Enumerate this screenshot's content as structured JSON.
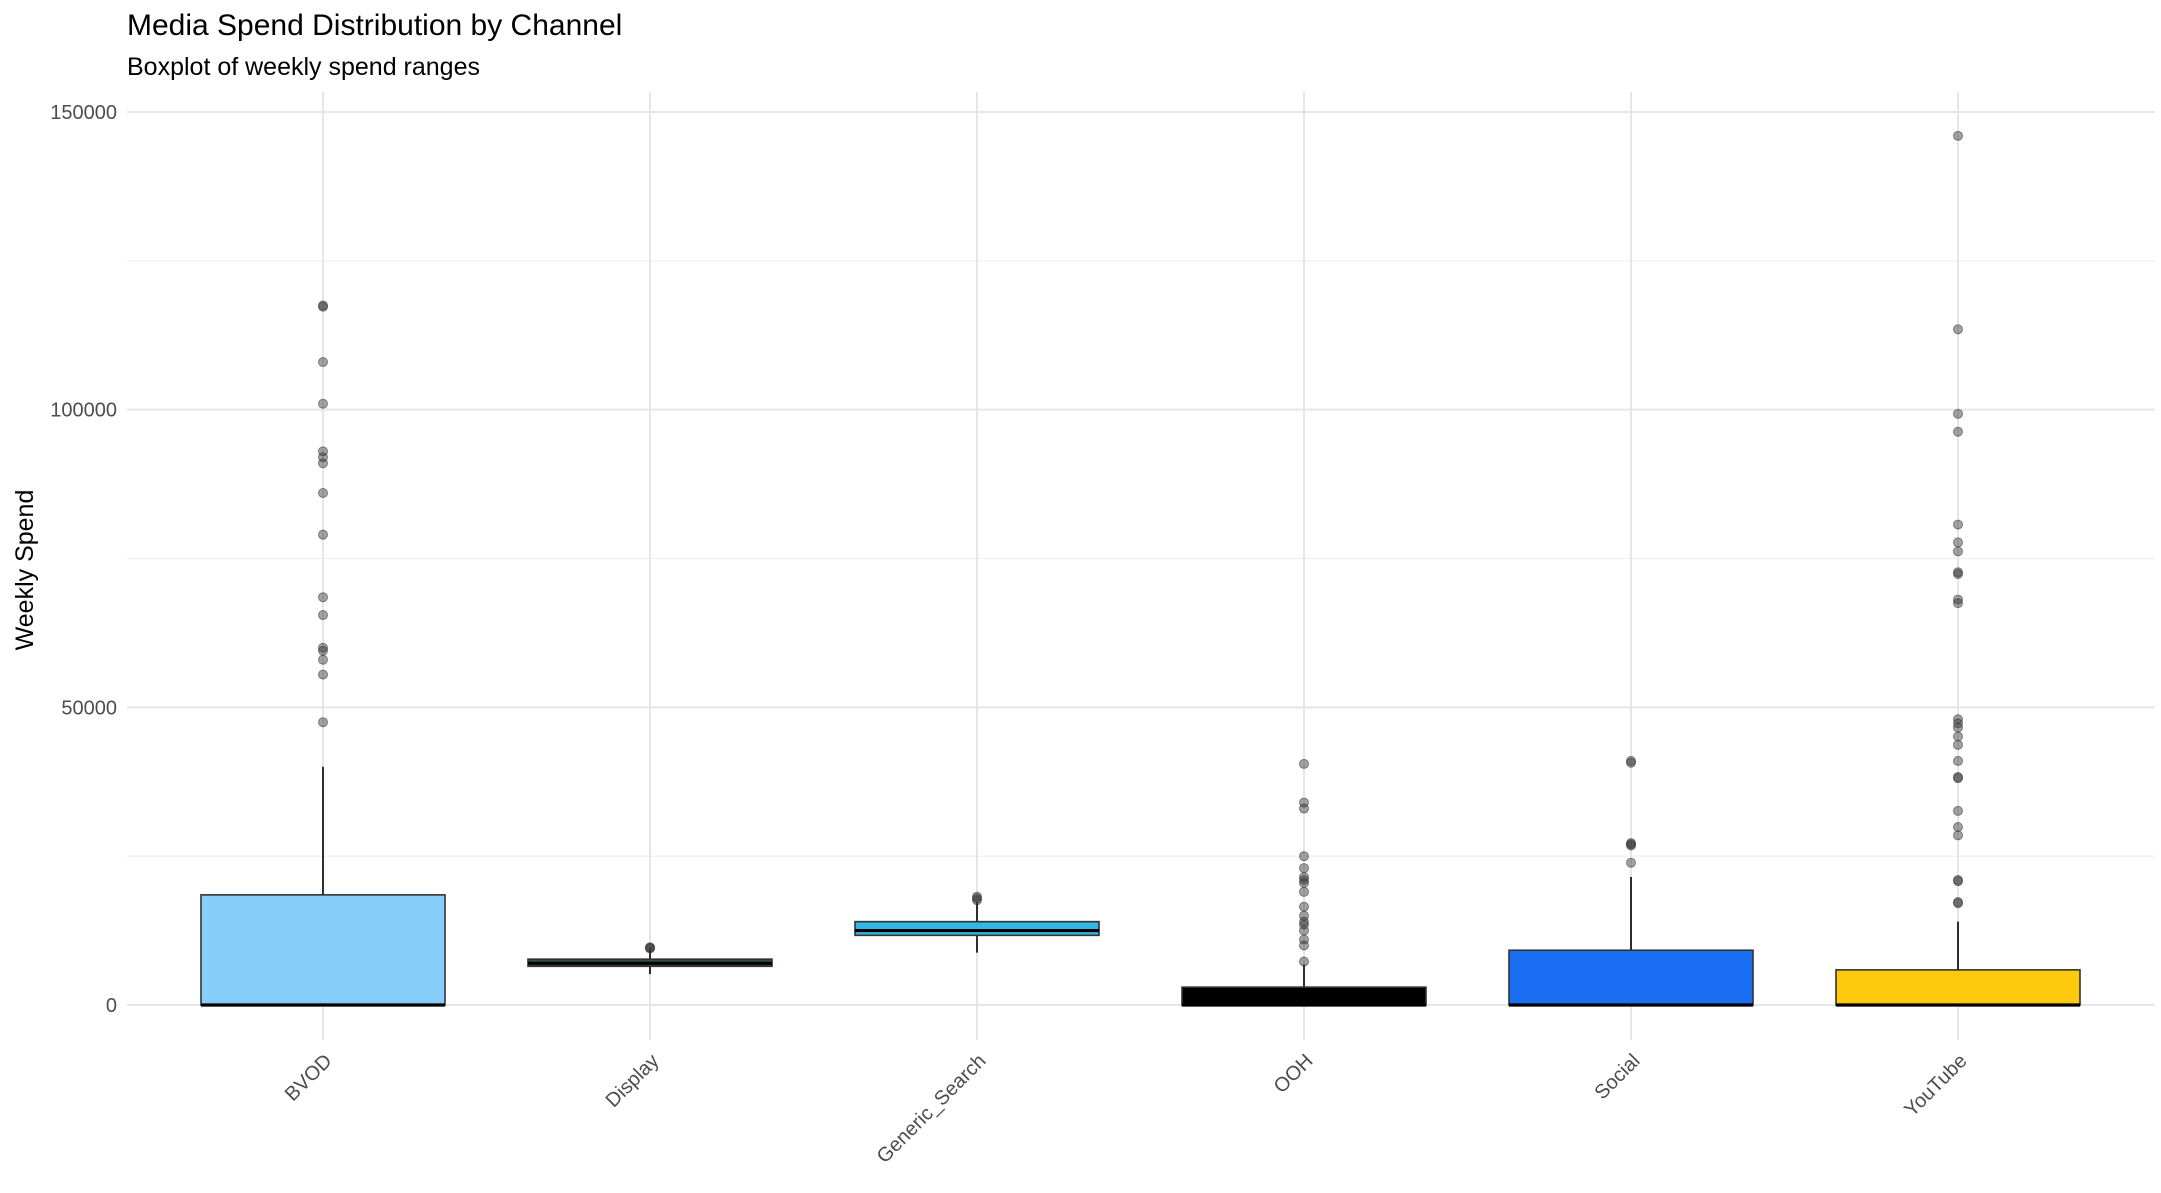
{
  "chart_data": {
    "type": "boxplot",
    "title": "Media Spend Distribution by Channel",
    "subtitle": "Boxplot of weekly spend ranges",
    "xlabel": "",
    "ylabel": "Weekly Spend",
    "ylim": [
      -6000,
      152000
    ],
    "y_ticks": [
      0,
      50000,
      100000,
      150000
    ],
    "y_tick_labels": [
      "0",
      "50000",
      "100000",
      "150000"
    ],
    "grid": true,
    "legend": "none",
    "categories": [
      "BVOD",
      "Display",
      "Generic_Search",
      "OOH",
      "Social",
      "YouTube"
    ],
    "boxes": [
      {
        "category": "BVOD",
        "color": "#87CEFA",
        "whisker_low": 0,
        "q1": 0,
        "median": 0,
        "q3": 18500,
        "whisker_high": 40000,
        "outliers": [
          117500,
          117300,
          108000,
          101000,
          93000,
          92000,
          91000,
          86000,
          79000,
          68500,
          65500,
          60000,
          59500,
          58000,
          55500,
          47500
        ]
      },
      {
        "category": "Display",
        "color": "#2F4F4F",
        "whisker_low": 5200,
        "q1": 6500,
        "median": 7000,
        "q3": 7700,
        "whisker_high": 9600,
        "outliers": [
          9700,
          9600,
          9500
        ]
      },
      {
        "category": "Generic_Search",
        "color": "#33B5E5",
        "whisker_low": 8800,
        "q1": 11700,
        "median": 12500,
        "q3": 14000,
        "whisker_high": 17300,
        "outliers": [
          18200,
          17900,
          17600
        ]
      },
      {
        "category": "OOH",
        "color": "#000000",
        "whisker_low": 0,
        "q1": 0,
        "median": 0,
        "q3": 3000,
        "whisker_high": 6800,
        "outliers": [
          40500,
          34000,
          33000,
          25000,
          23000,
          21500,
          21000,
          20500,
          19000,
          16500,
          15000,
          14000,
          13500,
          12500,
          11000,
          10000,
          7300
        ]
      },
      {
        "category": "Social",
        "color": "#1A6EF2",
        "whisker_low": 0,
        "q1": 0,
        "median": 0,
        "q3": 9200,
        "whisker_high": 21500,
        "outliers": [
          41000,
          40700,
          27200,
          27000,
          26800,
          23900
        ]
      },
      {
        "category": "YouTube",
        "color": "#FFC90E",
        "whisker_low": 0,
        "q1": 0,
        "median": 0,
        "q3": 5900,
        "whisker_high": 14000,
        "outliers": [
          146000,
          113500,
          99300,
          96300,
          80700,
          77700,
          76200,
          72700,
          72400,
          68100,
          67500,
          48000,
          47300,
          46600,
          45100,
          43700,
          41000,
          38300,
          38100,
          32600,
          29900,
          28500,
          21000,
          20800,
          17300,
          17100
        ]
      }
    ]
  }
}
